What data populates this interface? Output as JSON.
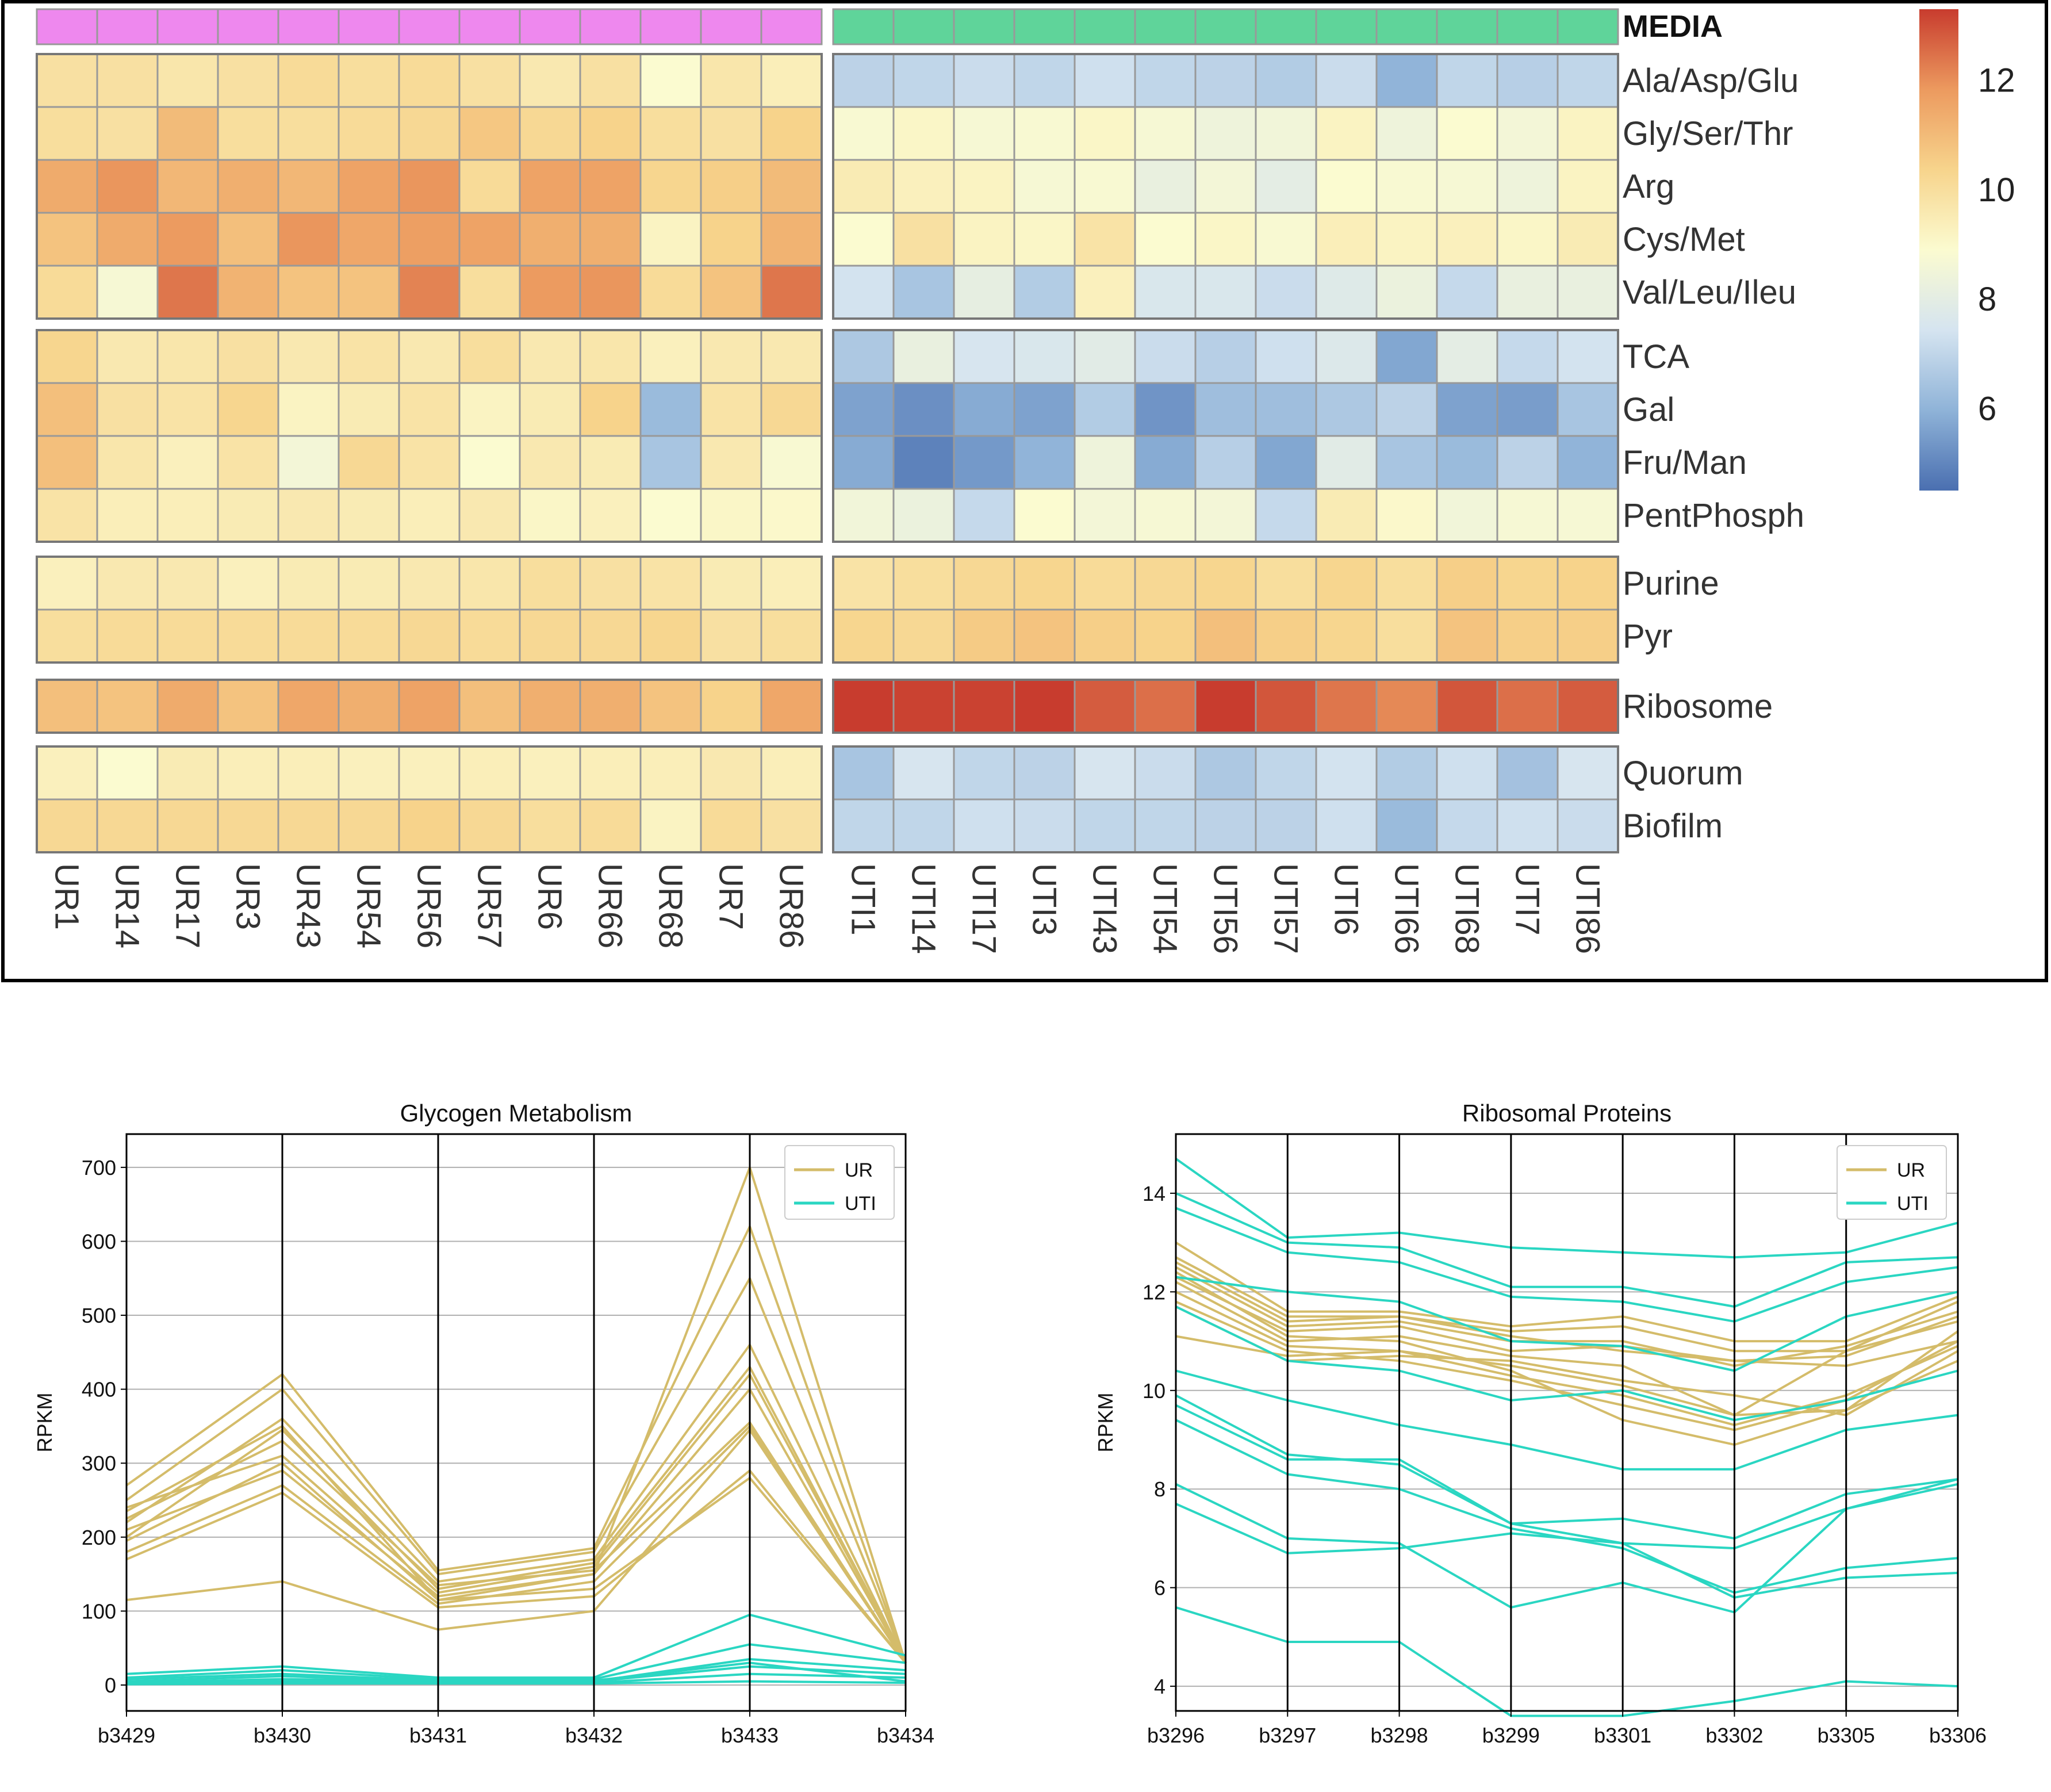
{
  "heatmap": {
    "media_label": "MEDIA",
    "media_colors": {
      "UR": "#ee88ee",
      "UTI": "#5fd49a"
    },
    "ur_columns": [
      "UR1",
      "UR14",
      "UR17",
      "UR3",
      "UR43",
      "UR54",
      "UR56",
      "UR57",
      "UR6",
      "UR66",
      "UR68",
      "UR7",
      "UR86"
    ],
    "uti_columns": [
      "UTI1",
      "UTI14",
      "UTI17",
      "UTI3",
      "UTI43",
      "UTI54",
      "UTI56",
      "UTI57",
      "UTI6",
      "UTI66",
      "UTI68",
      "UTI7",
      "UTI86"
    ],
    "row_groups": [
      [
        "Ala/Asp/Glu",
        "Gly/Ser/Thr",
        "Arg",
        "Cys/Met",
        "Val/Leu/Ileu"
      ],
      [
        "TCA",
        "Gal",
        "Fru/Man",
        "PentPhosph"
      ],
      [
        "Purine",
        "Pyr"
      ],
      [
        "Ribosome"
      ],
      [
        "Quorum",
        "Biofilm"
      ]
    ],
    "colorbar": {
      "ticks": [
        "12",
        "10",
        "8",
        "6"
      ],
      "tick_values": [
        12,
        10,
        8,
        6
      ],
      "range": [
        4.5,
        13.3
      ],
      "colors": [
        "#4a6fb0",
        "#8fb3d8",
        "#d5e4f0",
        "#fbfbd0",
        "#f7d48c",
        "#ec9a5f",
        "#c83c2e"
      ]
    },
    "values": {
      "Ala/Asp/Glu": {
        "UR": [
          9.9,
          9.9,
          9.7,
          9.9,
          10.1,
          10.0,
          10.1,
          9.9,
          9.6,
          9.9,
          8.9,
          9.7,
          9.4
        ],
        "UTI": [
          6.9,
          7.0,
          7.2,
          7.0,
          7.3,
          7.0,
          6.9,
          6.7,
          7.2,
          6.0,
          7.0,
          6.8,
          7.0
        ]
      },
      "Gly/Ser/Thr": {
        "UR": [
          10.0,
          9.9,
          11.0,
          10.0,
          10.0,
          10.1,
          10.2,
          10.7,
          10.2,
          10.4,
          10.0,
          9.9,
          10.4
        ],
        "UTI": [
          8.8,
          9.1,
          8.7,
          8.8,
          9.1,
          8.7,
          8.4,
          8.5,
          9.2,
          8.4,
          8.9,
          8.6,
          9.2
        ]
      },
      "Arg": {
        "UR": [
          11.4,
          11.9,
          11.1,
          11.3,
          11.1,
          11.6,
          11.9,
          10.1,
          11.6,
          11.6,
          10.3,
          10.5,
          11.0
        ],
        "UTI": [
          9.5,
          9.3,
          9.2,
          8.7,
          8.8,
          8.2,
          8.6,
          8.0,
          8.9,
          8.8,
          8.7,
          8.4,
          9.2
        ]
      },
      "Cys/Met": {
        "UR": [
          10.8,
          11.4,
          11.8,
          10.9,
          11.9,
          11.5,
          11.7,
          11.6,
          11.3,
          11.3,
          9.2,
          10.4,
          11.2
        ],
        "UTI": [
          8.9,
          9.9,
          9.2,
          9.1,
          9.8,
          8.9,
          9.1,
          8.8,
          9.4,
          9.2,
          9.3,
          9.1,
          9.5
        ]
      },
      "Val/Leu/Ileu": {
        "UR": [
          10.1,
          8.7,
          12.4,
          11.2,
          10.8,
          10.8,
          12.2,
          10.0,
          11.8,
          11.9,
          10.1,
          10.8,
          12.4
        ],
        "UTI": [
          7.4,
          6.5,
          8.1,
          6.7,
          9.3,
          7.6,
          7.6,
          7.2,
          7.8,
          8.3,
          7.1,
          8.2,
          8.2
        ]
      },
      "TCA": {
        "UR": [
          10.3,
          9.6,
          9.7,
          9.9,
          9.6,
          9.8,
          9.6,
          10.0,
          9.6,
          9.7,
          9.3,
          9.6,
          9.6
        ],
        "UTI": [
          6.6,
          8.2,
          7.5,
          7.6,
          7.9,
          7.2,
          6.8,
          7.3,
          7.7,
          5.7,
          8.0,
          7.1,
          7.4
        ]
      },
      "Gal": {
        "UR": [
          10.9,
          9.9,
          9.8,
          10.3,
          9.2,
          9.5,
          9.8,
          9.2,
          9.5,
          10.4,
          6.2,
          9.8,
          10.2
        ],
        "UTI": [
          5.6,
          5.2,
          5.8,
          5.6,
          6.7,
          5.3,
          6.3,
          6.3,
          6.6,
          6.9,
          5.6,
          5.5,
          6.5
        ]
      },
      "Fru/Man": {
        "UR": [
          10.9,
          9.7,
          9.3,
          9.8,
          8.6,
          10.2,
          9.8,
          8.9,
          9.6,
          9.5,
          6.5,
          9.6,
          8.8
        ],
        "UTI": [
          5.8,
          4.9,
          5.4,
          6.0,
          8.4,
          5.8,
          6.8,
          5.7,
          7.9,
          6.5,
          6.2,
          6.9,
          6.0
        ]
      },
      "PentPhosph": {
        "UR": [
          9.8,
          9.4,
          9.4,
          9.5,
          9.6,
          9.5,
          9.4,
          9.6,
          9.1,
          9.3,
          8.9,
          9.1,
          9.0
        ],
        "UTI": [
          8.5,
          8.3,
          7.1,
          8.9,
          8.6,
          8.7,
          8.6,
          7.1,
          9.5,
          9.0,
          8.5,
          8.7,
          8.7
        ]
      },
      "Purine": {
        "UR": [
          9.3,
          9.6,
          9.6,
          9.3,
          9.5,
          9.5,
          9.6,
          9.7,
          10.0,
          9.9,
          9.8,
          9.5,
          9.4
        ],
        "UTI": [
          9.8,
          10.0,
          10.2,
          10.3,
          10.1,
          10.2,
          10.3,
          10.0,
          10.3,
          10.0,
          10.5,
          10.3,
          10.4
        ]
      },
      "Pyr": {
        "UR": [
          10.0,
          10.1,
          10.1,
          10.1,
          10.1,
          10.1,
          10.2,
          10.1,
          10.2,
          10.2,
          10.3,
          9.9,
          10.0
        ],
        "UTI": [
          10.3,
          10.2,
          10.6,
          10.8,
          10.5,
          10.4,
          10.9,
          10.5,
          10.3,
          10.0,
          10.8,
          10.5,
          10.5
        ]
      },
      "Ribosome": {
        "UR": [
          10.9,
          10.8,
          11.4,
          10.8,
          11.5,
          11.3,
          11.6,
          10.9,
          11.3,
          11.3,
          10.8,
          10.4,
          11.5
        ],
        "UTI": [
          13.3,
          13.2,
          13.2,
          13.4,
          12.8,
          12.5,
          13.5,
          12.9,
          12.4,
          12.1,
          12.9,
          12.5,
          12.8
        ]
      },
      "Quorum": {
        "UR": [
          9.3,
          8.9,
          9.5,
          9.4,
          9.4,
          9.3,
          9.3,
          9.4,
          9.3,
          9.4,
          9.4,
          9.6,
          9.4
        ],
        "UTI": [
          6.5,
          7.5,
          7.0,
          6.9,
          7.5,
          7.2,
          6.6,
          7.0,
          7.4,
          6.7,
          7.3,
          6.4,
          7.5
        ]
      },
      "Biofilm": {
        "UR": [
          10.2,
          10.2,
          10.2,
          10.2,
          10.2,
          10.2,
          10.4,
          10.2,
          10.0,
          10.1,
          9.2,
          10.1,
          9.9
        ],
        "UTI": [
          7.0,
          7.0,
          7.3,
          7.2,
          7.0,
          7.0,
          6.9,
          6.9,
          7.3,
          6.2,
          7.1,
          7.3,
          7.2
        ]
      }
    }
  },
  "chart_data": [
    {
      "type": "line",
      "title": "Glycogen Metabolism",
      "xlabel": "",
      "ylabel": "RPKM",
      "categories": [
        "b3429",
        "b3430",
        "b3431",
        "b3432",
        "b3433",
        "b3434"
      ],
      "ylim": [
        -35,
        745
      ],
      "yticks": [
        0,
        100,
        200,
        300,
        400,
        500,
        600,
        700
      ],
      "grid": true,
      "legend_position": "top-right",
      "legend": [
        {
          "name": "UR",
          "color": "#d4bc6a"
        },
        {
          "name": "UTI",
          "color": "#2ad6c2"
        }
      ],
      "series": [
        {
          "group": "UR",
          "values": [
            235,
            350,
            115,
            150,
            700,
            30
          ]
        },
        {
          "group": "UR",
          "values": [
            270,
            420,
            155,
            185,
            620,
            30
          ]
        },
        {
          "group": "UR",
          "values": [
            250,
            400,
            150,
            180,
            550,
            30
          ]
        },
        {
          "group": "UR",
          "values": [
            220,
            360,
            140,
            170,
            460,
            30
          ]
        },
        {
          "group": "UR",
          "values": [
            200,
            345,
            130,
            165,
            430,
            30
          ]
        },
        {
          "group": "UR",
          "values": [
            240,
            310,
            125,
            160,
            420,
            30
          ]
        },
        {
          "group": "UR",
          "values": [
            210,
            290,
            120,
            150,
            400,
            30
          ]
        },
        {
          "group": "UR",
          "values": [
            180,
            270,
            110,
            140,
            350,
            30
          ]
        },
        {
          "group": "UR",
          "values": [
            170,
            260,
            105,
            120,
            290,
            30
          ]
        },
        {
          "group": "UR",
          "values": [
            225,
            330,
            135,
            155,
            355,
            30
          ]
        },
        {
          "group": "UR",
          "values": [
            195,
            300,
            115,
            130,
            280,
            30
          ]
        },
        {
          "group": "UR",
          "values": [
            115,
            140,
            75,
            100,
            345,
            30
          ]
        },
        {
          "group": "UTI",
          "values": [
            15,
            25,
            10,
            10,
            95,
            40
          ]
        },
        {
          "group": "UTI",
          "values": [
            10,
            20,
            8,
            8,
            55,
            30
          ]
        },
        {
          "group": "UTI",
          "values": [
            5,
            12,
            5,
            5,
            35,
            20
          ]
        },
        {
          "group": "UTI",
          "values": [
            3,
            8,
            5,
            5,
            25,
            15
          ]
        },
        {
          "group": "UTI",
          "values": [
            2,
            5,
            3,
            3,
            15,
            10
          ]
        },
        {
          "group": "UTI",
          "values": [
            8,
            15,
            6,
            6,
            30,
            5
          ]
        },
        {
          "group": "UTI",
          "values": [
            1,
            2,
            2,
            2,
            5,
            3
          ]
        }
      ]
    },
    {
      "type": "line",
      "title": "Ribosomal Proteins",
      "xlabel": "",
      "ylabel": "RPKM",
      "categories": [
        "b3296",
        "b3297",
        "b3298",
        "b3299",
        "b3301",
        "b3302",
        "b3305",
        "b3306"
      ],
      "ylim": [
        3.5,
        15.2
      ],
      "yticks": [
        4,
        6,
        8,
        10,
        12,
        14
      ],
      "grid": true,
      "legend_position": "top-right",
      "legend": [
        {
          "name": "UR",
          "color": "#d4bc6a"
        },
        {
          "name": "UTI",
          "color": "#2ad6c2"
        }
      ],
      "series": [
        {
          "group": "UR",
          "values": [
            13.0,
            11.6,
            11.6,
            11.3,
            11.5,
            11.0,
            11.0,
            11.9
          ]
        },
        {
          "group": "UR",
          "values": [
            12.7,
            11.5,
            11.5,
            11.2,
            11.3,
            10.8,
            10.8,
            11.8
          ]
        },
        {
          "group": "UR",
          "values": [
            12.5,
            11.3,
            11.4,
            11.0,
            11.0,
            10.5,
            10.9,
            11.6
          ]
        },
        {
          "group": "UR",
          "values": [
            12.3,
            11.2,
            11.3,
            10.8,
            10.9,
            10.6,
            10.7,
            11.5
          ]
        },
        {
          "group": "UR",
          "values": [
            12.2,
            11.0,
            11.1,
            10.7,
            10.5,
            9.5,
            10.8,
            11.4
          ]
        },
        {
          "group": "UR",
          "values": [
            12.0,
            10.9,
            10.8,
            10.5,
            10.1,
            9.5,
            9.6,
            11.2
          ]
        },
        {
          "group": "UR",
          "values": [
            11.8,
            10.8,
            10.6,
            10.2,
            9.7,
            9.2,
            9.8,
            11.0
          ]
        },
        {
          "group": "UR",
          "values": [
            12.6,
            11.4,
            11.5,
            11.1,
            10.8,
            10.6,
            10.5,
            11.0
          ]
        },
        {
          "group": "UR",
          "values": [
            11.7,
            10.6,
            10.7,
            10.6,
            10.2,
            9.9,
            9.5,
            10.8
          ]
        },
        {
          "group": "UR",
          "values": [
            12.4,
            11.1,
            11.0,
            10.4,
            9.4,
            8.9,
            9.6,
            10.6
          ]
        },
        {
          "group": "UR",
          "values": [
            11.1,
            10.7,
            10.8,
            10.3,
            9.9,
            9.3,
            9.9,
            10.9
          ]
        },
        {
          "group": "UTI",
          "values": [
            14.7,
            13.1,
            13.2,
            12.9,
            12.8,
            12.7,
            12.8,
            13.4
          ]
        },
        {
          "group": "UTI",
          "values": [
            14.0,
            13.0,
            12.9,
            12.1,
            12.1,
            11.7,
            12.6,
            12.7
          ]
        },
        {
          "group": "UTI",
          "values": [
            13.7,
            12.8,
            12.6,
            11.9,
            11.8,
            11.4,
            12.2,
            12.5
          ]
        },
        {
          "group": "UTI",
          "values": [
            12.3,
            12.0,
            11.8,
            11.0,
            10.9,
            10.4,
            11.5,
            12.0
          ]
        },
        {
          "group": "UTI",
          "values": [
            11.7,
            10.6,
            10.4,
            9.8,
            10.0,
            9.4,
            9.8,
            10.4
          ]
        },
        {
          "group": "UTI",
          "values": [
            10.4,
            9.8,
            9.3,
            8.9,
            8.4,
            8.4,
            9.2,
            9.5
          ]
        },
        {
          "group": "UTI",
          "values": [
            9.7,
            8.6,
            8.6,
            7.3,
            7.4,
            7.0,
            7.9,
            8.2
          ]
        },
        {
          "group": "UTI",
          "values": [
            8.1,
            7.0,
            6.9,
            5.6,
            6.1,
            5.5,
            7.6,
            8.1
          ]
        },
        {
          "group": "UTI",
          "values": [
            7.7,
            6.7,
            6.8,
            7.1,
            6.9,
            6.8,
            7.6,
            8.2
          ]
        },
        {
          "group": "UTI",
          "values": [
            5.6,
            4.9,
            4.9,
            3.4,
            3.4,
            3.7,
            4.1,
            4.0
          ]
        },
        {
          "group": "UTI",
          "values": [
            9.4,
            8.3,
            8.0,
            7.2,
            6.8,
            5.9,
            6.4,
            6.6
          ]
        },
        {
          "group": "UTI",
          "values": [
            9.9,
            8.7,
            8.5,
            7.3,
            6.9,
            5.8,
            6.2,
            6.3
          ]
        }
      ]
    }
  ]
}
